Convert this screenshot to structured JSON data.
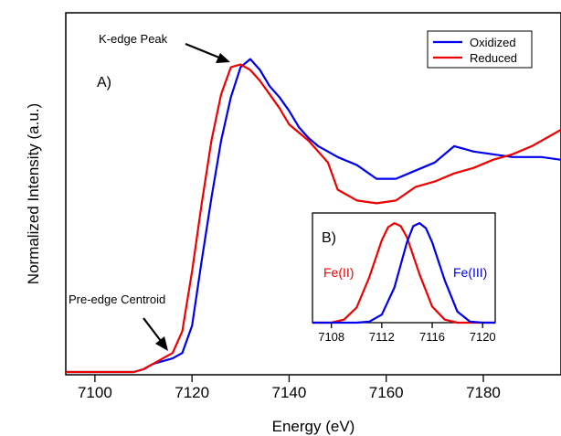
{
  "chart_data": [
    {
      "type": "line",
      "xlabel": "Energy (eV)",
      "ylabel": "Normalized Intensity (a.u.)",
      "xlim": [
        7094,
        7196
      ],
      "ylim": [
        0,
        1.33
      ],
      "x_ticks": [
        "7100",
        "7120",
        "7140",
        "7160",
        "7180"
      ],
      "y_ticks_shown": false,
      "legend": {
        "position": "top-right",
        "entries": [
          "Oxidized",
          "Reduced"
        ]
      },
      "panel_label": "A)",
      "annotations": [
        {
          "text": "K-edge Peak",
          "arrow_to": [
            7129,
            1.14
          ]
        },
        {
          "text": "Pre-edge Centroid",
          "arrow_to": [
            7115,
            0.08
          ]
        }
      ],
      "series": [
        {
          "name": "Oxidized",
          "color": "#0000ee",
          "points": [
            [
              7094,
              0.01
            ],
            [
              7108,
              0.01
            ],
            [
              7110,
              0.02
            ],
            [
              7112,
              0.04
            ],
            [
              7114,
              0.05
            ],
            [
              7116,
              0.06
            ],
            [
              7118,
              0.08
            ],
            [
              7120,
              0.18
            ],
            [
              7122,
              0.42
            ],
            [
              7124,
              0.65
            ],
            [
              7126,
              0.86
            ],
            [
              7128,
              1.02
            ],
            [
              7130,
              1.13
            ],
            [
              7132,
              1.16
            ],
            [
              7134,
              1.12
            ],
            [
              7136,
              1.06
            ],
            [
              7138,
              1.02
            ],
            [
              7140,
              0.97
            ],
            [
              7142,
              0.91
            ],
            [
              7144,
              0.87
            ],
            [
              7146,
              0.84
            ],
            [
              7148,
              0.82
            ],
            [
              7150,
              0.8
            ],
            [
              7154,
              0.77
            ],
            [
              7158,
              0.72
            ],
            [
              7162,
              0.72
            ],
            [
              7166,
              0.75
            ],
            [
              7170,
              0.78
            ],
            [
              7174,
              0.84
            ],
            [
              7178,
              0.82
            ],
            [
              7182,
              0.81
            ],
            [
              7186,
              0.8
            ],
            [
              7192,
              0.8
            ],
            [
              7196,
              0.79
            ]
          ]
        },
        {
          "name": "Reduced",
          "color": "#ee0000",
          "points": [
            [
              7094,
              0.01
            ],
            [
              7108,
              0.01
            ],
            [
              7110,
              0.02
            ],
            [
              7112,
              0.04
            ],
            [
              7114,
              0.06
            ],
            [
              7116,
              0.08
            ],
            [
              7118,
              0.16
            ],
            [
              7120,
              0.38
            ],
            [
              7122,
              0.63
            ],
            [
              7124,
              0.86
            ],
            [
              7126,
              1.03
            ],
            [
              7128,
              1.13
            ],
            [
              7130,
              1.14
            ],
            [
              7132,
              1.12
            ],
            [
              7134,
              1.08
            ],
            [
              7136,
              1.03
            ],
            [
              7138,
              0.98
            ],
            [
              7140,
              0.92
            ],
            [
              7144,
              0.86
            ],
            [
              7148,
              0.78
            ],
            [
              7150,
              0.68
            ],
            [
              7154,
              0.64
            ],
            [
              7158,
              0.63
            ],
            [
              7162,
              0.64
            ],
            [
              7166,
              0.69
            ],
            [
              7170,
              0.71
            ],
            [
              7174,
              0.74
            ],
            [
              7178,
              0.76
            ],
            [
              7182,
              0.79
            ],
            [
              7186,
              0.81
            ],
            [
              7190,
              0.84
            ],
            [
              7196,
              0.9
            ]
          ]
        }
      ]
    },
    {
      "type": "line",
      "panel_label": "B)",
      "xlim": [
        7106.5,
        7121
      ],
      "ylim": [
        0,
        1
      ],
      "x_ticks": [
        "7108",
        "7112",
        "7116",
        "7120"
      ],
      "series": [
        {
          "name": "Fe(II)",
          "color": "#ee0000",
          "points": [
            [
              7106.5,
              0
            ],
            [
              7107,
              0
            ],
            [
              7108,
              0
            ],
            [
              7109,
              0.03
            ],
            [
              7110,
              0.15
            ],
            [
              7111,
              0.45
            ],
            [
              7112,
              0.82
            ],
            [
              7112.5,
              0.95
            ],
            [
              7113,
              0.99
            ],
            [
              7113.5,
              0.96
            ],
            [
              7114,
              0.85
            ],
            [
              7115,
              0.48
            ],
            [
              7116,
              0.16
            ],
            [
              7117,
              0.03
            ],
            [
              7118,
              0
            ],
            [
              7121,
              0
            ]
          ]
        },
        {
          "name": "Fe(III)",
          "color": "#0000ee",
          "points": [
            [
              7106.5,
              0
            ],
            [
              7110,
              0
            ],
            [
              7111,
              0.01
            ],
            [
              7112,
              0.08
            ],
            [
              7113,
              0.35
            ],
            [
              7114,
              0.8
            ],
            [
              7114.5,
              0.96
            ],
            [
              7115,
              0.99
            ],
            [
              7115.5,
              0.94
            ],
            [
              7116,
              0.8
            ],
            [
              7117,
              0.42
            ],
            [
              7118,
              0.11
            ],
            [
              7119,
              0.01
            ],
            [
              7120,
              0
            ],
            [
              7121,
              0
            ]
          ]
        }
      ]
    }
  ]
}
